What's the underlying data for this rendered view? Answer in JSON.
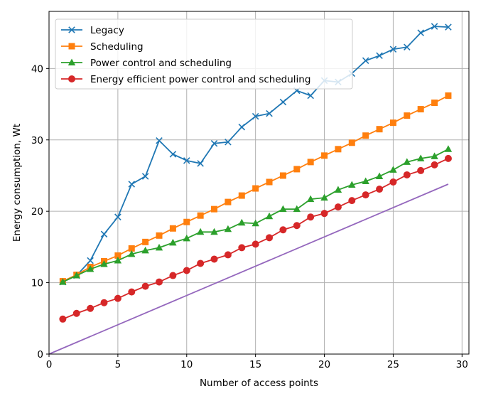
{
  "chart_data": {
    "type": "line",
    "xlabel": "Number of access points",
    "ylabel": "Energy consumption, Wt",
    "xlim": [
      0,
      30.5
    ],
    "ylim": [
      0,
      48
    ],
    "grid": true,
    "legend_placement": "top-left",
    "x_ticks": [
      0,
      5,
      10,
      15,
      20,
      25,
      30
    ],
    "y_ticks": [
      0,
      10,
      20,
      30,
      40
    ],
    "x": [
      1,
      2,
      3,
      4,
      5,
      6,
      7,
      8,
      9,
      10,
      11,
      12,
      13,
      14,
      15,
      16,
      17,
      18,
      19,
      20,
      21,
      22,
      23,
      24,
      25,
      26,
      27,
      28,
      29
    ],
    "series": [
      {
        "name": "Legacy",
        "color": "#1f77b4",
        "marker": "x",
        "values": [
          10.1,
          11.0,
          13.1,
          16.8,
          19.2,
          23.8,
          24.9,
          29.9,
          28.0,
          27.1,
          26.7,
          29.5,
          29.7,
          31.8,
          33.3,
          33.7,
          35.3,
          36.9,
          36.2,
          38.3,
          38.1,
          39.3,
          41.1,
          41.8,
          42.7,
          43.0,
          45.0,
          45.9,
          45.8
        ]
      },
      {
        "name": "Scheduling",
        "color": "#ff7f0e",
        "marker": "square",
        "values": [
          10.2,
          11.1,
          12.2,
          13.0,
          13.8,
          14.8,
          15.7,
          16.6,
          17.6,
          18.5,
          19.4,
          20.3,
          21.3,
          22.2,
          23.2,
          24.1,
          25.0,
          25.9,
          26.9,
          27.8,
          28.7,
          29.6,
          30.6,
          31.5,
          32.4,
          33.4,
          34.3,
          35.2,
          36.2
        ]
      },
      {
        "name": "Power control and scheduling",
        "color": "#2ca02c",
        "marker": "triangle",
        "values": [
          10.1,
          11.0,
          11.9,
          12.6,
          13.1,
          14.0,
          14.5,
          14.9,
          15.6,
          16.2,
          17.1,
          17.1,
          17.5,
          18.4,
          18.3,
          19.3,
          20.3,
          20.3,
          21.7,
          21.9,
          23.0,
          23.7,
          24.2,
          24.9,
          25.8,
          26.9,
          27.4,
          27.7,
          28.7
        ]
      },
      {
        "name": "Energy efficient power control and scheduling",
        "color": "#d62728",
        "marker": "circle",
        "values": [
          4.9,
          5.7,
          6.4,
          7.2,
          7.8,
          8.7,
          9.5,
          10.1,
          11.0,
          11.7,
          12.7,
          13.3,
          13.9,
          14.9,
          15.4,
          16.3,
          17.4,
          18.0,
          19.2,
          19.7,
          20.6,
          21.5,
          22.3,
          23.1,
          24.1,
          25.1,
          25.7,
          26.5,
          27.4
        ]
      },
      {
        "color": "#9467bd",
        "marker": "none",
        "x": [
          0,
          29
        ],
        "values": [
          0,
          23.8
        ]
      }
    ]
  }
}
